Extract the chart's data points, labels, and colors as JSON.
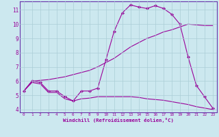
{
  "title": "",
  "xlabel": "Windchill (Refroidissement éolien,°C)",
  "background_color": "#cce8ef",
  "grid_color": "#aacdd6",
  "line_color": "#990099",
  "spine_color": "#6633aa",
  "xlim": [
    -0.5,
    23.5
  ],
  "ylim": [
    3.8,
    11.6
  ],
  "xticks": [
    0,
    1,
    2,
    3,
    4,
    5,
    6,
    7,
    8,
    9,
    10,
    11,
    12,
    13,
    14,
    15,
    16,
    17,
    18,
    19,
    20,
    21,
    22,
    23
  ],
  "yticks": [
    4,
    5,
    6,
    7,
    8,
    9,
    10,
    11
  ],
  "line1_x": [
    0,
    1,
    2,
    3,
    4,
    5,
    6,
    7,
    8,
    9,
    10,
    11,
    12,
    13,
    14,
    15,
    16,
    17,
    18,
    19,
    20,
    21,
    22,
    23
  ],
  "line1_y": [
    5.3,
    6.0,
    5.9,
    5.3,
    5.3,
    4.9,
    4.6,
    5.3,
    5.3,
    5.5,
    7.5,
    9.5,
    10.8,
    11.35,
    11.2,
    11.1,
    11.3,
    11.1,
    10.7,
    10.0,
    7.7,
    5.7,
    4.9,
    4.1
  ],
  "line2_x": [
    0,
    1,
    2,
    3,
    4,
    5,
    6,
    7,
    8,
    9,
    10,
    11,
    12,
    13,
    14,
    15,
    16,
    17,
    18,
    19,
    20,
    21,
    22,
    23
  ],
  "line2_y": [
    5.3,
    6.0,
    6.05,
    6.1,
    6.2,
    6.3,
    6.45,
    6.6,
    6.75,
    7.0,
    7.3,
    7.6,
    8.0,
    8.4,
    8.7,
    9.0,
    9.2,
    9.45,
    9.6,
    9.8,
    10.0,
    9.95,
    9.9,
    9.9
  ],
  "line3_x": [
    0,
    1,
    2,
    3,
    4,
    5,
    6,
    7,
    8,
    9,
    10,
    11,
    12,
    13,
    14,
    15,
    16,
    17,
    18,
    19,
    20,
    21,
    22,
    23
  ],
  "line3_y": [
    5.3,
    5.9,
    5.8,
    5.2,
    5.2,
    4.75,
    4.6,
    4.75,
    4.8,
    4.9,
    4.9,
    4.9,
    4.9,
    4.9,
    4.85,
    4.75,
    4.7,
    4.65,
    4.55,
    4.45,
    4.35,
    4.2,
    4.1,
    4.0
  ]
}
